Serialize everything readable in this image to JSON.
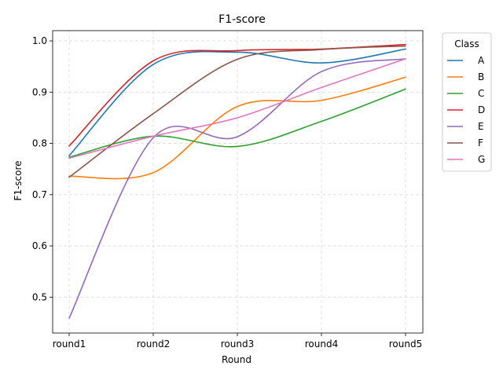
{
  "chart_data": {
    "type": "line",
    "title": "F1-score",
    "xlabel": "Round",
    "ylabel": "F1-score",
    "categories": [
      "round1",
      "round2",
      "round3",
      "round4",
      "round5"
    ],
    "ylim": [
      0.43,
      1.02
    ],
    "yticks": [
      0.5,
      0.6,
      0.7,
      0.8,
      0.9,
      1.0
    ],
    "ytick_labels": [
      "0.5",
      "0.6",
      "0.7",
      "0.8",
      "0.9",
      "1.0"
    ],
    "grid": true,
    "smoothed": true,
    "legend": {
      "title": "Class",
      "placement": "outside-right"
    },
    "series": [
      {
        "name": "A",
        "color": "#1f77b4",
        "values": [
          0.776,
          0.954,
          0.978,
          0.957,
          0.984
        ]
      },
      {
        "name": "B",
        "color": "#ff7f0e",
        "values": [
          0.736,
          0.743,
          0.872,
          0.884,
          0.929
        ]
      },
      {
        "name": "C",
        "color": "#2ca02c",
        "values": [
          0.773,
          0.814,
          0.794,
          0.843,
          0.906
        ]
      },
      {
        "name": "D",
        "color": "#d62728",
        "values": [
          0.795,
          0.961,
          0.981,
          0.984,
          0.993
        ]
      },
      {
        "name": "E",
        "color": "#9467bd",
        "values": [
          0.459,
          0.811,
          0.813,
          0.94,
          0.965
        ]
      },
      {
        "name": "F",
        "color": "#8c564b",
        "values": [
          0.734,
          0.858,
          0.964,
          0.983,
          0.99
        ]
      },
      {
        "name": "G",
        "color": "#e377c2",
        "values": [
          0.771,
          0.814,
          0.85,
          0.909,
          0.965
        ]
      }
    ]
  }
}
